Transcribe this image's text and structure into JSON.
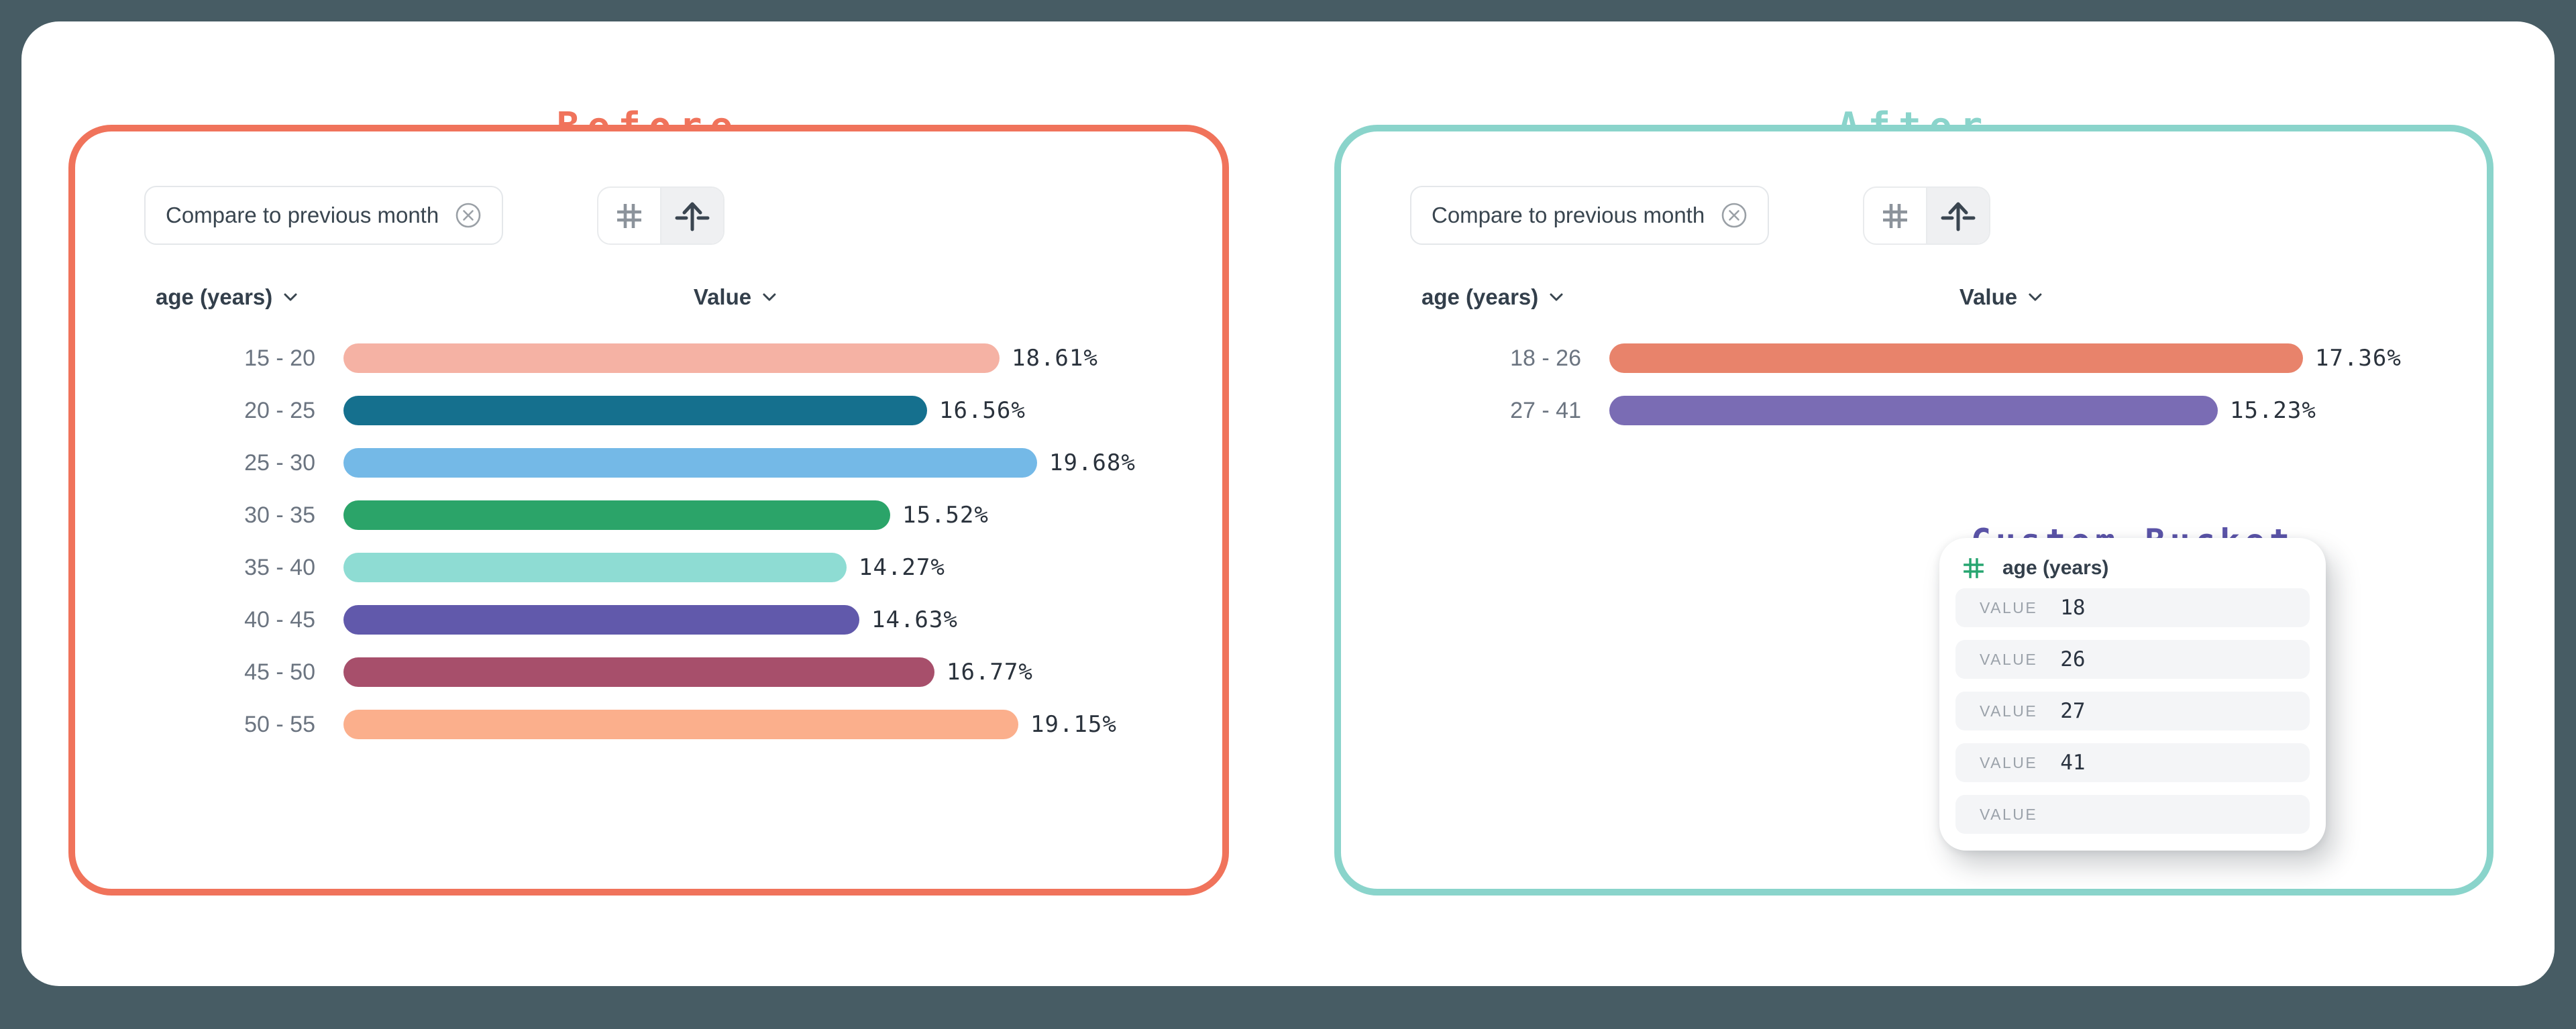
{
  "page": {
    "background_color": "#475C64",
    "card_color": "#FFFFFF"
  },
  "before": {
    "title": "Before",
    "accent_color": "#F0735B",
    "filter_chip": {
      "label": "Compare to previous month",
      "close_icon": "circled-x"
    },
    "toolbar_icons": [
      "hash-icon",
      "axis-arrow-up-icon"
    ],
    "columns": {
      "dimension": "age (years)",
      "measure": "Value"
    },
    "chart_data": {
      "type": "bar",
      "orientation": "horizontal",
      "categories": [
        "15 - 20",
        "20 - 25",
        "25 - 30",
        "30 - 35",
        "35 - 40",
        "40 - 45",
        "45 - 50",
        "50 - 55"
      ],
      "values": [
        18.61,
        16.56,
        19.68,
        15.52,
        14.27,
        14.63,
        16.77,
        19.15
      ],
      "value_labels": [
        "18.61%",
        "16.56%",
        "19.68%",
        "15.52%",
        "14.27%",
        "14.63%",
        "16.77%",
        "19.15%"
      ],
      "colors": [
        "#F5B2A4",
        "#15708E",
        "#74B9E7",
        "#2BA469",
        "#8EDCD3",
        "#6159AB",
        "#A74F6B",
        "#FBAF8C"
      ],
      "patterns": [
        null,
        null,
        null,
        null,
        null,
        null,
        null,
        "dots"
      ],
      "xlabel": "",
      "ylabel": "",
      "grid": false,
      "legend": false
    }
  },
  "after": {
    "title": "After",
    "accent_color": "#8AD4CB",
    "filter_chip": {
      "label": "Compare to previous month",
      "close_icon": "circled-x"
    },
    "toolbar_icons": [
      "hash-icon",
      "axis-arrow-up-icon"
    ],
    "columns": {
      "dimension": "age (years)",
      "measure": "Value"
    },
    "chart_data": {
      "type": "bar",
      "orientation": "horizontal",
      "categories": [
        "18 - 26",
        "27 - 41"
      ],
      "values": [
        17.36,
        15.23
      ],
      "value_labels": [
        "17.36%",
        "15.23%"
      ],
      "colors": [
        "#E8836B",
        "#7A6CB4"
      ],
      "patterns": [
        null,
        null
      ],
      "xlabel": "",
      "ylabel": "",
      "grid": false,
      "legend": false
    },
    "custom_bucket": {
      "title": "Custom Bucket",
      "title_color": "#5B54A8",
      "field_icon": "hash-icon",
      "field_icon_color": "#27A570",
      "field_label": "age (years)",
      "value_label": "VALUE",
      "values": [
        "18",
        "26",
        "27",
        "41",
        ""
      ]
    }
  }
}
